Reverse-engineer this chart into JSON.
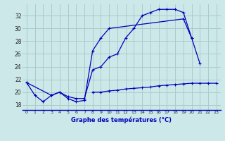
{
  "title": "Graphe des températures (°C)",
  "bg_color": "#cce8e8",
  "grid_color": "#aacccc",
  "line_color": "#0000bb",
  "axis_color": "#0000bb",
  "xlim": [
    -0.5,
    23.5
  ],
  "ylim": [
    17.2,
    33.8
  ],
  "yticks": [
    18,
    20,
    22,
    24,
    26,
    28,
    30,
    32
  ],
  "xticks": [
    0,
    1,
    2,
    3,
    4,
    5,
    6,
    7,
    8,
    9,
    10,
    11,
    12,
    13,
    14,
    15,
    16,
    17,
    18,
    19,
    20,
    21,
    22,
    23
  ],
  "curve1_x": [
    0,
    1,
    2,
    3,
    4,
    5,
    6,
    7,
    8,
    9,
    10,
    11,
    12,
    13,
    14,
    15,
    16,
    17,
    18,
    19,
    20
  ],
  "curve1_y": [
    21.5,
    19.5,
    18.5,
    19.5,
    20.0,
    19.3,
    19.0,
    19.0,
    23.5,
    24.0,
    25.5,
    26.0,
    28.5,
    30.0,
    32.0,
    32.5,
    33.0,
    33.0,
    33.0,
    32.5,
    28.5
  ],
  "curve2_x": [
    0,
    3,
    4,
    5,
    6,
    7,
    8,
    9,
    10,
    19,
    20,
    21
  ],
  "curve2_y": [
    21.5,
    19.5,
    20.0,
    19.0,
    18.5,
    18.7,
    26.5,
    28.5,
    30.0,
    31.5,
    28.5,
    24.5
  ],
  "curve3_x": [
    8,
    9,
    10,
    11,
    12,
    13,
    14,
    15,
    16,
    17,
    18,
    19,
    20,
    21,
    22,
    23
  ],
  "curve3_y": [
    20.0,
    20.0,
    20.2,
    20.3,
    20.5,
    20.6,
    20.7,
    20.8,
    21.0,
    21.1,
    21.2,
    21.3,
    21.4,
    21.4,
    21.4,
    21.4
  ]
}
